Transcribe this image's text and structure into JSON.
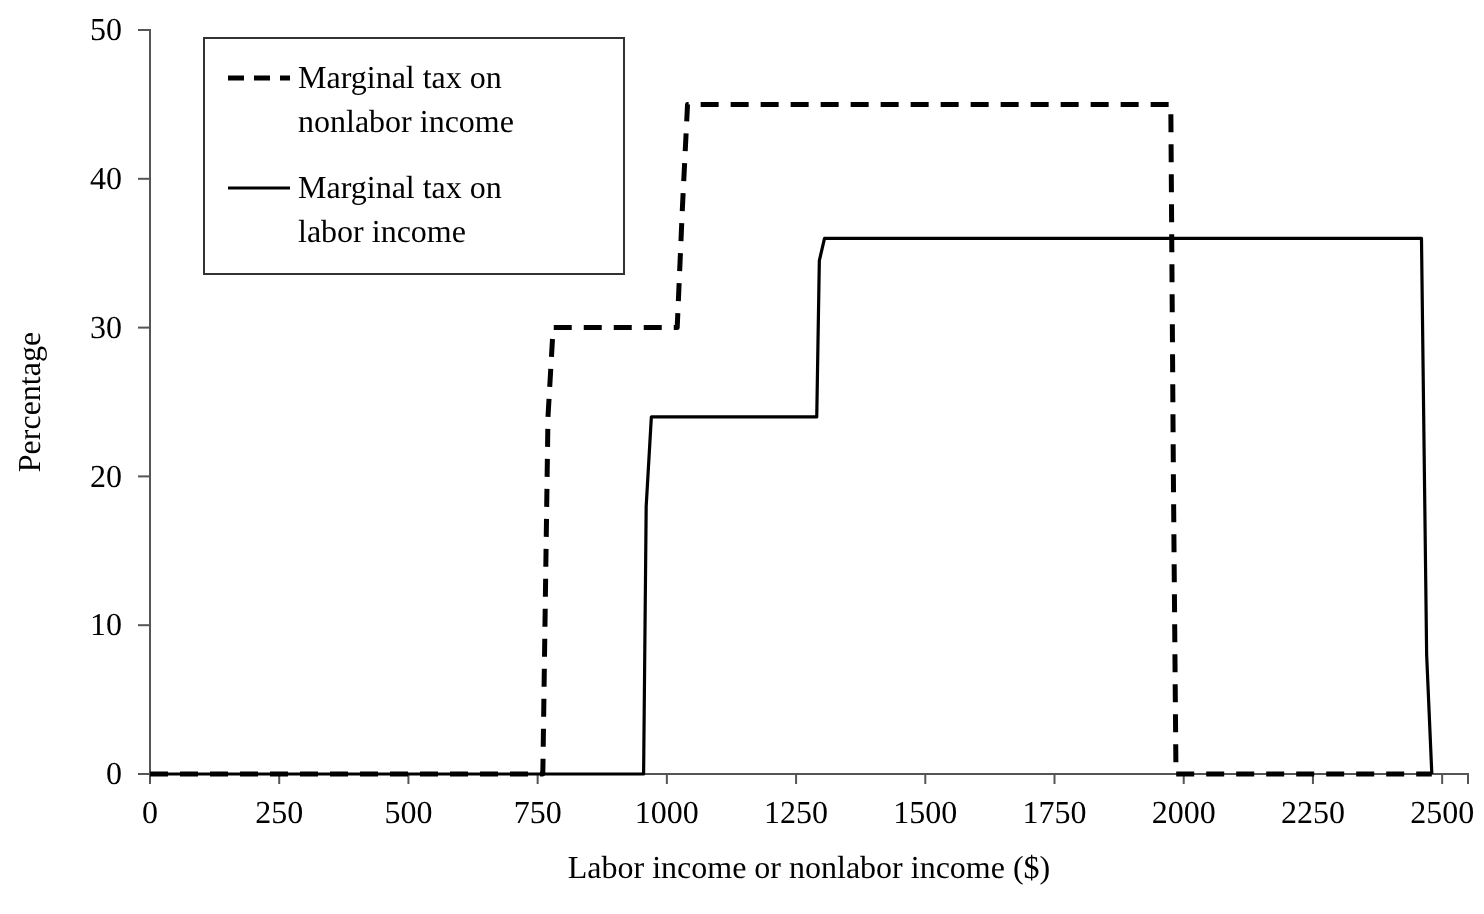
{
  "chart_data": {
    "type": "line",
    "xlabel": "Labor income or nonlabor income ($)",
    "ylabel": "Percentage",
    "xlim": [
      0,
      2550
    ],
    "xticks": [
      0,
      250,
      500,
      750,
      1000,
      1250,
      1500,
      1750,
      2000,
      2250,
      2500
    ],
    "ylim": [
      0,
      50
    ],
    "yticks": [
      0,
      10,
      20,
      30,
      40,
      50
    ],
    "grid": false,
    "legend": "top left",
    "series": [
      {
        "name": "Marginal tax on nonlabor income",
        "color": "#000000",
        "line_style": "dashed",
        "x": [
          0,
          760,
          770,
          780,
          1020,
          1030,
          1040,
          1975,
          1980,
          1985,
          2480
        ],
        "values": [
          0,
          0,
          24,
          30,
          30,
          38,
          45,
          45,
          20,
          0,
          0
        ]
      },
      {
        "name": "Marginal tax on labor income",
        "color": "#000000",
        "line_style": "solid",
        "x": [
          0,
          955,
          960,
          970,
          1290,
          1295,
          1305,
          2460,
          2470,
          2480
        ],
        "values": [
          0,
          0,
          18,
          24,
          24,
          34.5,
          36,
          36,
          8,
          0
        ]
      }
    ]
  }
}
